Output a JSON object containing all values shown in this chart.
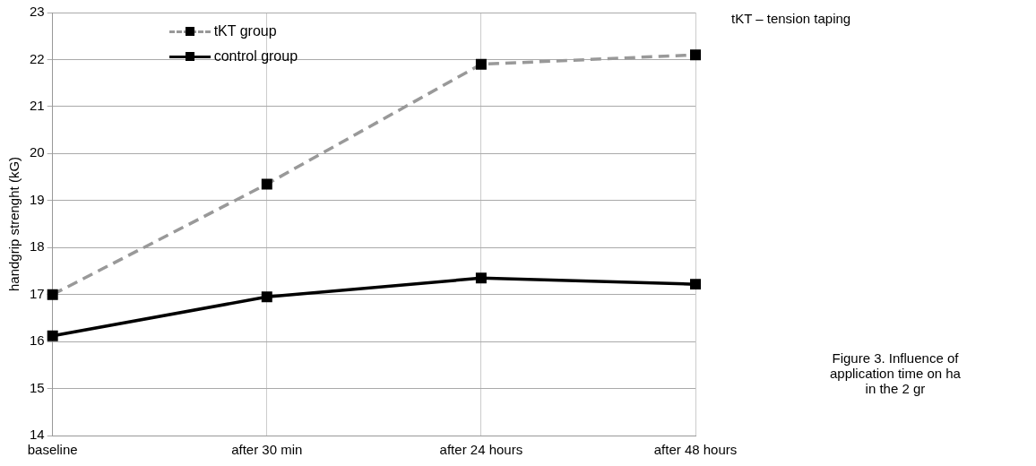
{
  "chart_data": {
    "type": "line",
    "ylabel": "handgrip strenght (kG)",
    "categories": [
      "baseline",
      "after 30 min",
      "after 24 hours",
      "after 48 hours"
    ],
    "series": [
      {
        "name": "tKT group",
        "color": "#999999",
        "line_style": "dashed",
        "values": [
          17.0,
          19.35,
          21.9,
          22.1
        ]
      },
      {
        "name": "control group",
        "color": "#000000",
        "line_style": "solid",
        "values": [
          16.12,
          16.95,
          17.35,
          17.22
        ]
      }
    ],
    "ylim": [
      14,
      23
    ],
    "yticks": [
      14,
      15,
      16,
      17,
      18,
      19,
      20,
      21,
      22,
      23
    ],
    "grid": true,
    "legend": "top left",
    "marker": "square",
    "annotations": [
      "tKT – tension taping",
      "Figure 3. Influence of\napplication time on ha\nin the 2 gr"
    ]
  }
}
